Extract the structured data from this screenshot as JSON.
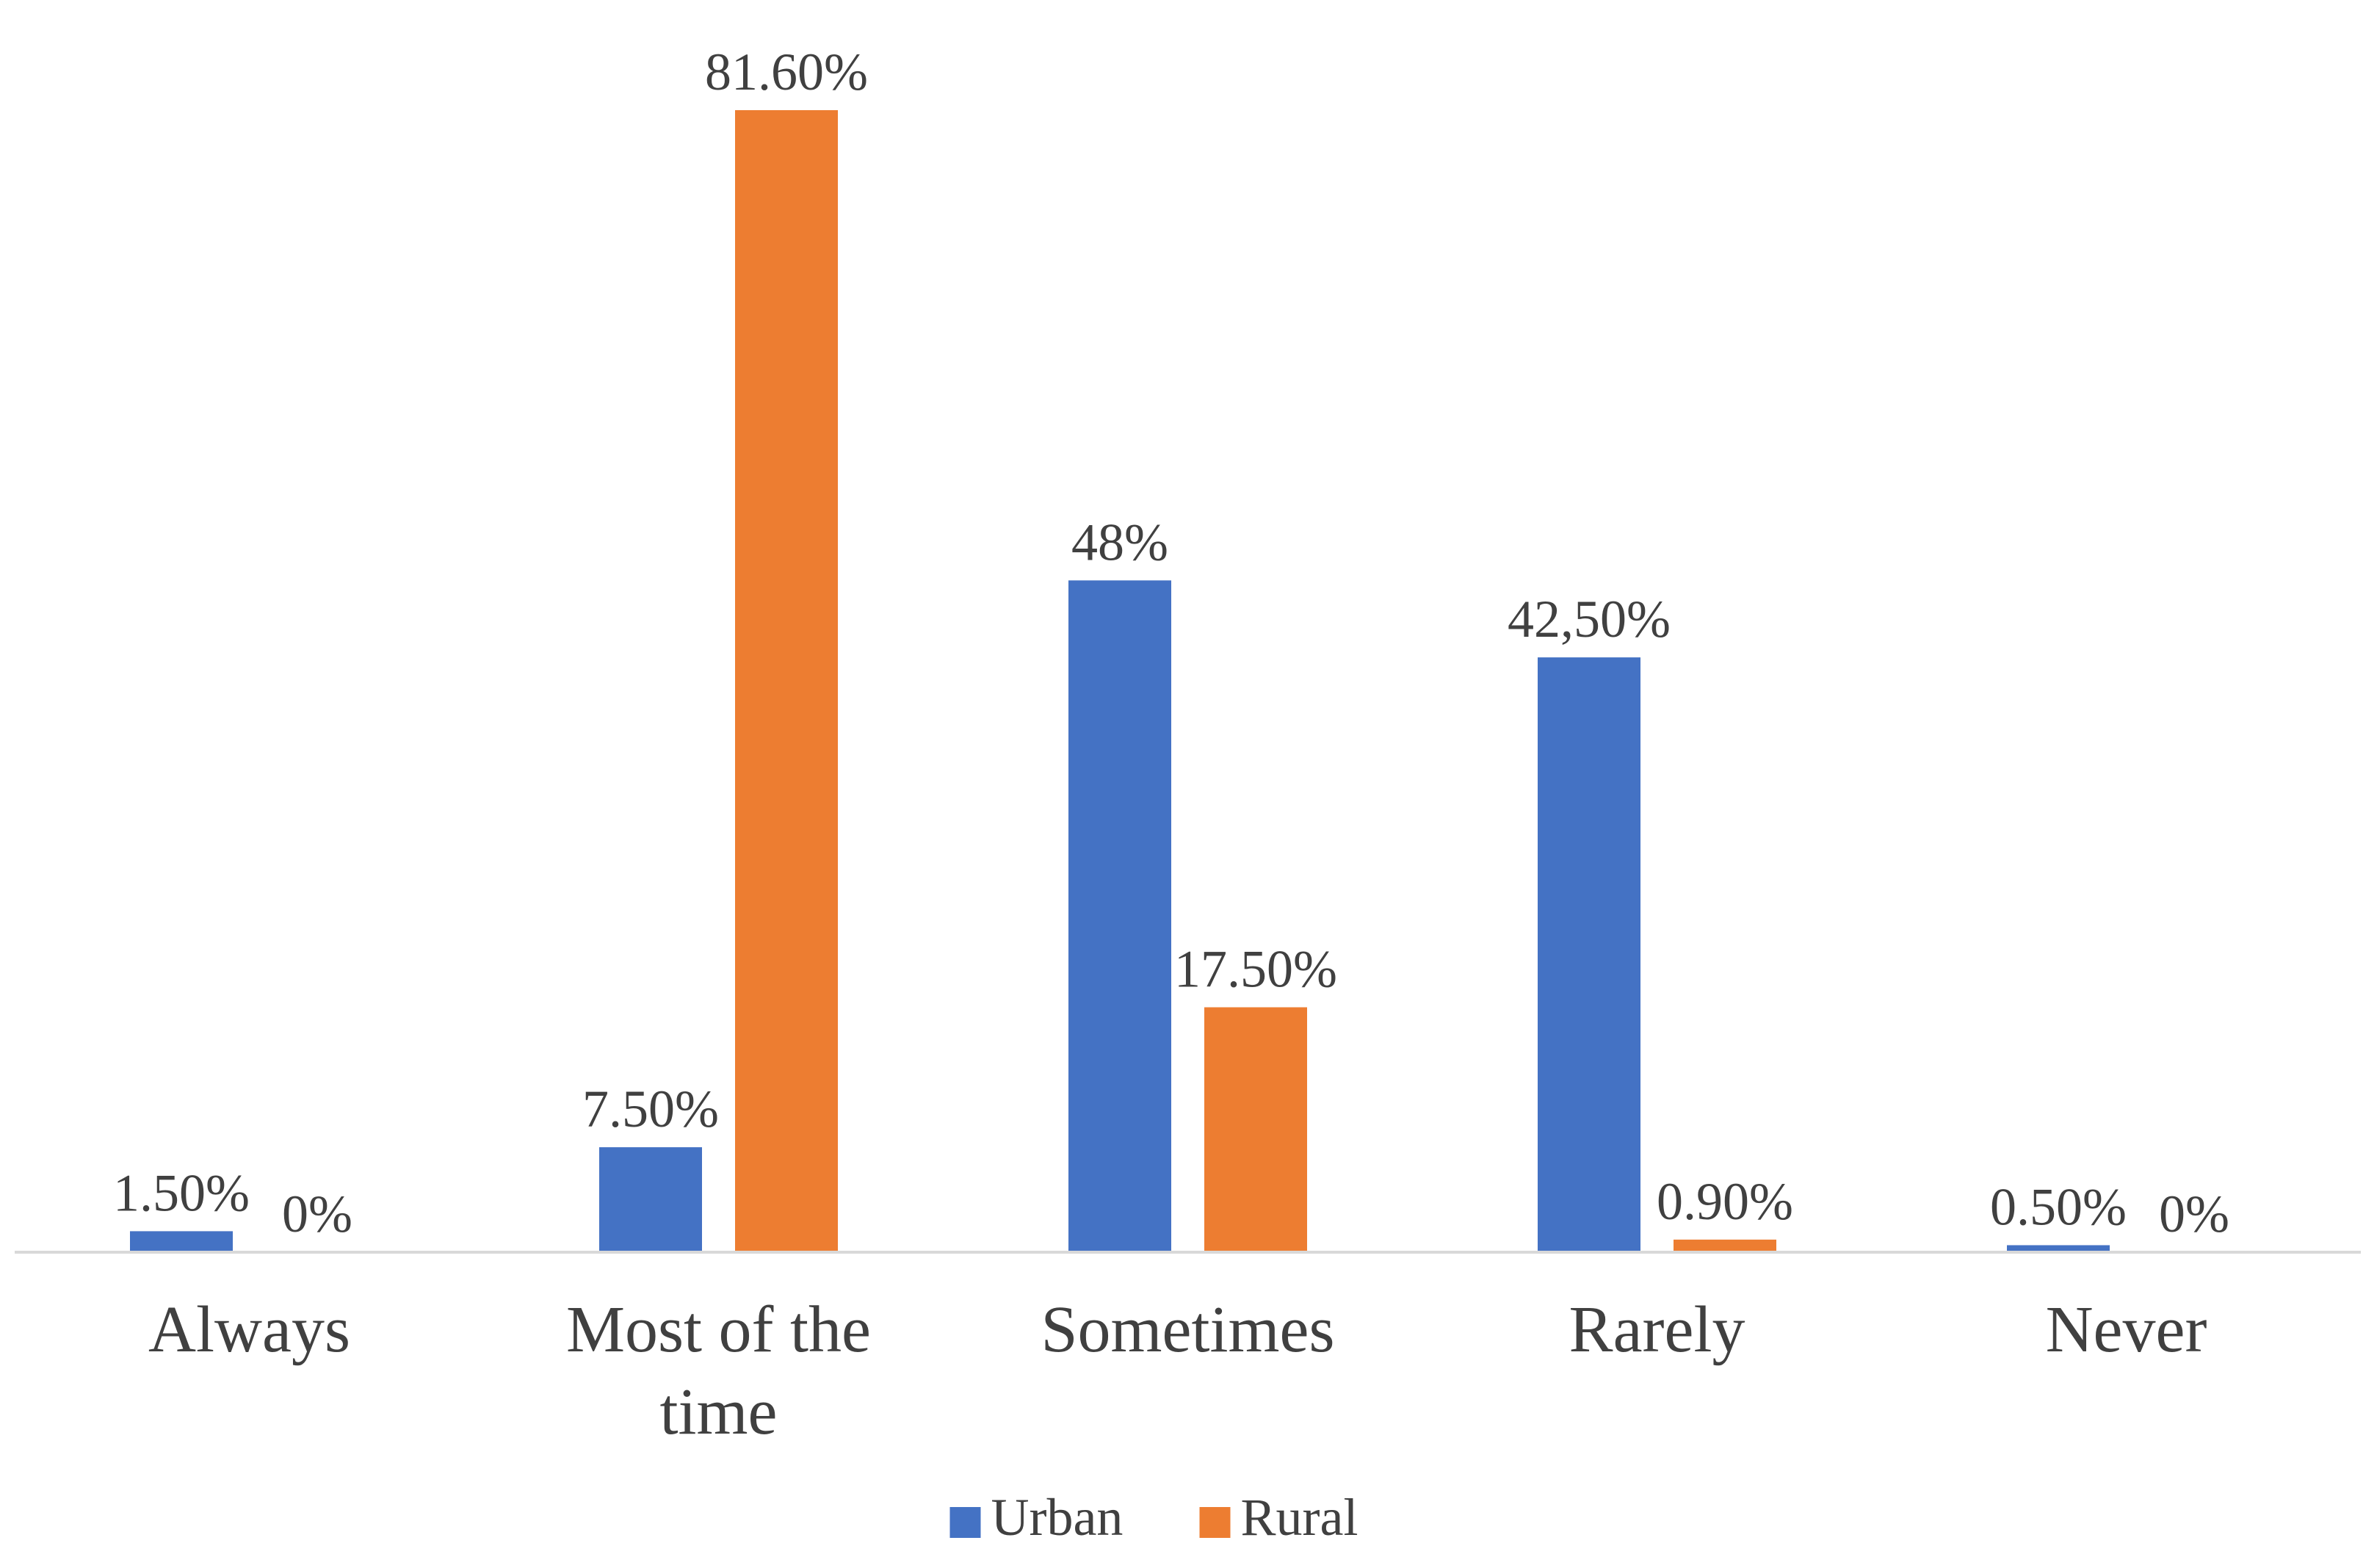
{
  "chart_data": {
    "type": "bar",
    "title": "",
    "xlabel": "",
    "ylabel": "",
    "ylim": [
      0,
      100
    ],
    "grid": false,
    "legend_position": "bottom",
    "categories": [
      [
        "Always"
      ],
      [
        "Most of the",
        "time"
      ],
      [
        "Sometimes"
      ],
      [
        "Rarely"
      ],
      [
        "Never"
      ]
    ],
    "series": [
      {
        "name": "Urban",
        "color": "#4472C4",
        "values": [
          1.5,
          7.5,
          48,
          42.5,
          0.5
        ],
        "labels": [
          "1.50%",
          "7.50%",
          "48%",
          "42,50%",
          "0.50%"
        ]
      },
      {
        "name": "Rural",
        "color": "#ED7D31",
        "values": [
          0,
          81.6,
          17.5,
          0.9,
          0
        ],
        "labels": [
          "0%",
          "81.60%",
          "17.50%",
          "0.90%",
          "0%"
        ]
      }
    ]
  }
}
